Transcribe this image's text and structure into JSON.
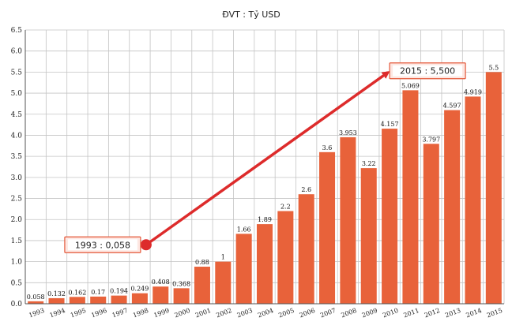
{
  "chart_data": {
    "type": "bar",
    "title": "ĐVT : Tỷ USD",
    "xlabel": "",
    "ylabel": "",
    "categories": [
      "1993",
      "1994",
      "1995",
      "1996",
      "1997",
      "1998",
      "1999",
      "2000",
      "2001",
      "2002",
      "2003",
      "2004",
      "2005",
      "2006",
      "2007",
      "2008",
      "2009",
      "2010",
      "2011",
      "2012",
      "2013",
      "2014",
      "2015"
    ],
    "values": [
      0.058,
      0.132,
      0.162,
      0.17,
      0.194,
      0.249,
      0.408,
      0.368,
      0.88,
      1,
      1.66,
      1.89,
      2.2,
      2.6,
      3.6,
      3.953,
      3.22,
      4.157,
      5.069,
      3.797,
      4.597,
      4.919,
      5.5
    ],
    "data_labels": [
      "0.058",
      "0.132",
      "0.162",
      "0.17",
      "0.194",
      "0.249",
      "0.408",
      "0.368",
      "0.88",
      "1",
      "1.66",
      "1.89",
      "2.2",
      "2.6",
      "3.6",
      "3.953",
      "3.22",
      "4.157",
      "5.069",
      "3.797",
      "4.597",
      "4.919",
      "5.5"
    ],
    "ylim": [
      0,
      6.5
    ],
    "yticks": [
      0,
      0.5,
      1,
      1.5,
      2,
      2.5,
      3,
      3.5,
      4,
      4.5,
      5,
      5.5,
      6,
      6.5
    ],
    "ytick_labels": [
      "0.0",
      "0.5",
      "1.0",
      "1.5",
      "2.0",
      "2.5",
      "3.0",
      "3.5",
      "4.0",
      "4.5",
      "5.0",
      "5.5",
      "6.0",
      "6.5"
    ],
    "grid": true,
    "bar_color": "#e8623a",
    "arrow_color": "#dd2b2b",
    "annotations": [
      {
        "text": "1993 : 0,058",
        "category": "1998",
        "value": 1.4
      },
      {
        "text": "2015 : 5,500",
        "category": "2010",
        "value": 5.55
      }
    ]
  }
}
